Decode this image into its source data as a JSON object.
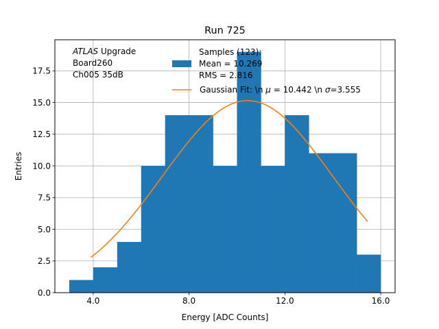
{
  "chart_data": {
    "type": "bar",
    "title": "Run 725",
    "xlabel": "Energy [ADC Counts]",
    "ylabel": "Entries",
    "xlim": [
      2.4,
      16.6
    ],
    "ylim": [
      0,
      19.95
    ],
    "grid": true,
    "x_ticks": [
      4.0,
      8.0,
      12.0,
      16.0
    ],
    "x_tick_labels": [
      "4.0",
      "8.0",
      "12.0",
      "16.0"
    ],
    "y_ticks": [
      0,
      2.5,
      5,
      7.5,
      10,
      12.5,
      15,
      17.5
    ],
    "y_tick_labels": [
      "0.0",
      "2.5",
      "5.0",
      "7.5",
      "10.0",
      "12.5",
      "15.0",
      "17.5"
    ],
    "histogram": {
      "name": "Samples (123)",
      "color": "#1f77b4",
      "bin_edges": [
        3,
        4,
        5,
        6,
        7,
        8,
        9,
        10,
        11,
        12,
        13,
        14,
        15,
        16
      ],
      "counts": [
        1,
        2,
        4,
        10,
        14,
        14,
        10,
        19,
        10,
        14,
        11,
        11,
        3
      ]
    },
    "fit": {
      "name": "Gaussian Fit",
      "color": "#ff7f0e",
      "mu": 10.442,
      "sigma": 3.555,
      "amplitude": 15.15,
      "x_range": [
        3.9,
        15.45
      ]
    },
    "annotation": {
      "lines": [
        {
          "italic": "ATLAS",
          "rest": " Upgrade"
        },
        {
          "italic": "",
          "rest": " Board260"
        },
        {
          "italic": "",
          "rest": " Ch005 35dB"
        }
      ]
    },
    "legend": {
      "position": "top-center",
      "entries": [
        {
          "type": "patch",
          "lines": [
            "Samples (123):",
            " Mean = 10.269",
            " RMS = 2.816"
          ]
        },
        {
          "type": "line",
          "label_prefix": "Gaussian Fit: \\n ",
          "mu_symbol": "μ",
          "mu_text": " = 10.442 \\n ",
          "sigma_symbol": "σ",
          "sigma_text": "=3.555"
        }
      ]
    }
  }
}
